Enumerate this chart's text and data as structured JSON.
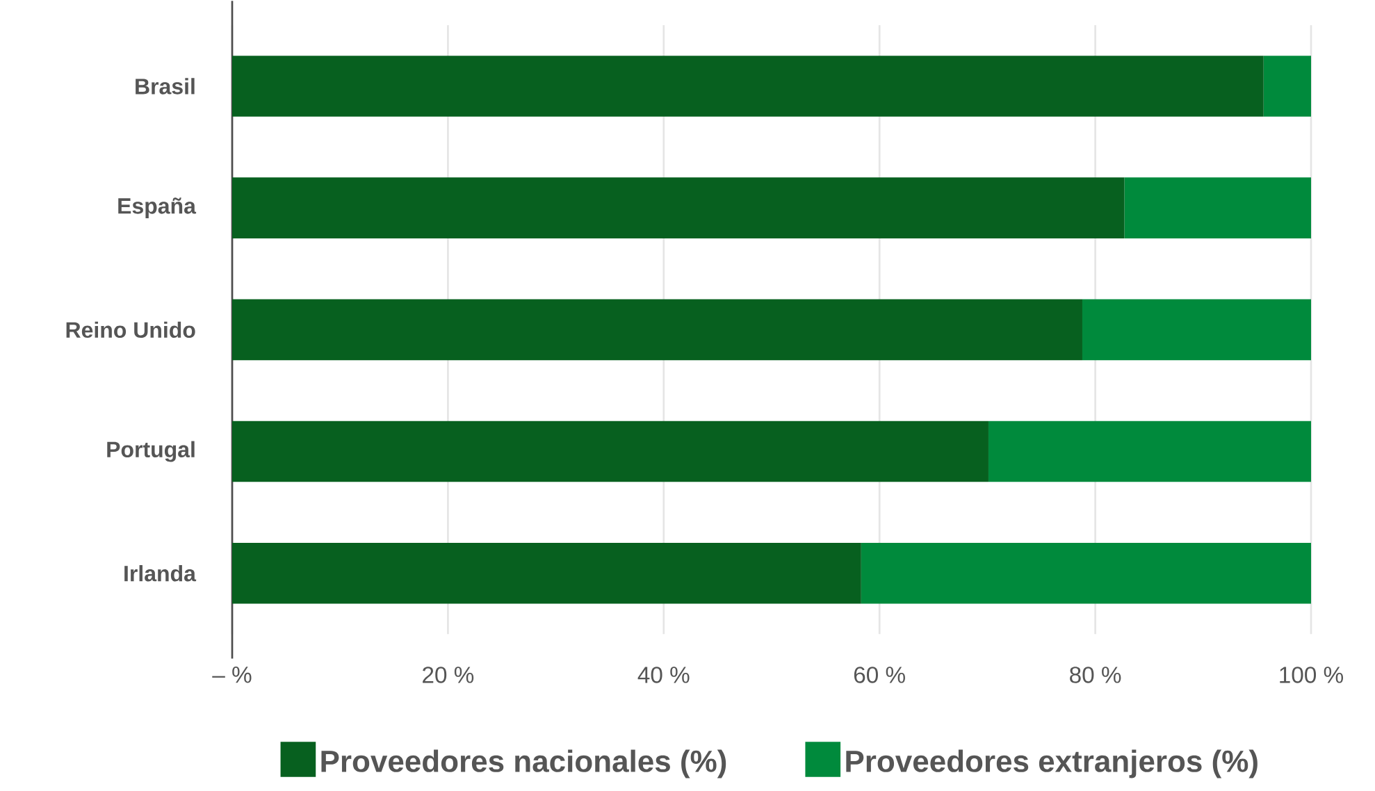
{
  "chart_data": {
    "type": "bar",
    "orientation": "horizontal",
    "stacked": true,
    "categories": [
      "Brasil",
      "España",
      "Reino Unido",
      "Portugal",
      "Irlanda"
    ],
    "series": [
      {
        "name": "Proveedores nacionales (%)",
        "color": "#07601f",
        "values": [
          95.6,
          82.7,
          78.8,
          70.1,
          58.3
        ]
      },
      {
        "name": "Proveedores extranjeros (%)",
        "color": "#008a3c",
        "values": [
          4.4,
          17.3,
          21.2,
          29.9,
          41.7
        ]
      }
    ],
    "xlim": [
      0,
      100
    ],
    "xticks": [
      {
        "value": 0,
        "label": "– %"
      },
      {
        "value": 20,
        "label": "20 %"
      },
      {
        "value": 40,
        "label": "40 %"
      },
      {
        "value": 60,
        "label": "60 %"
      },
      {
        "value": 80,
        "label": "80 %"
      },
      {
        "value": 100,
        "label": "100 %"
      }
    ],
    "grid": "x",
    "legend": "bottom"
  }
}
